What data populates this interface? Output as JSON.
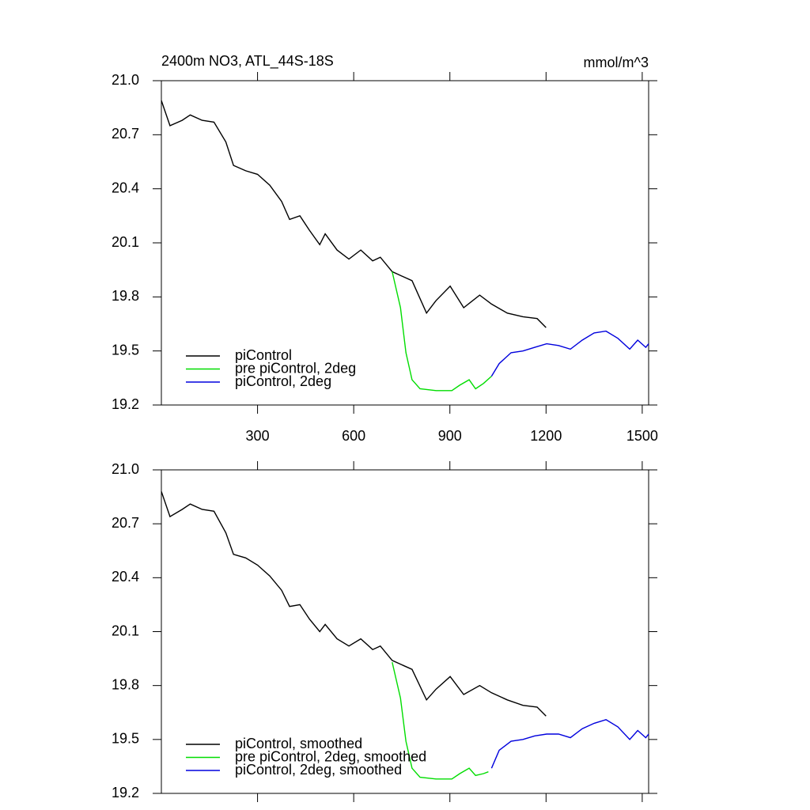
{
  "chart_data": [
    {
      "type": "line",
      "title": "2400m NO3, ATL_44S-18S",
      "units": "mmol/m^3",
      "xlim": [
        0,
        1520
      ],
      "xticks": [
        300,
        600,
        900,
        1200,
        1500
      ],
      "ylim": [
        19.2,
        21.0
      ],
      "yticks": [
        {
          "value": 19.2,
          "label": "19.2"
        },
        19.5,
        19.8,
        20.1,
        20.4,
        20.7,
        {
          "value": 21.0,
          "label": "21.0"
        }
      ],
      "series": [
        {
          "name": "piControl",
          "color": "#000000",
          "x": [
            0,
            27,
            65,
            90,
            127,
            164,
            201,
            225,
            263,
            300,
            338,
            375,
            400,
            432,
            462,
            494,
            511,
            548,
            585,
            622,
            659,
            683,
            720,
            757,
            782,
            827,
            857,
            901,
            943,
            993,
            1030,
            1079,
            1128,
            1172,
            1200
          ],
          "values": [
            20.89,
            20.75,
            20.78,
            20.81,
            20.78,
            20.77,
            20.66,
            20.53,
            20.5,
            20.48,
            20.42,
            20.33,
            20.23,
            20.25,
            20.17,
            20.09,
            20.15,
            20.06,
            20.01,
            20.06,
            20.0,
            20.02,
            19.94,
            19.91,
            19.89,
            19.71,
            19.78,
            19.86,
            19.74,
            19.81,
            19.76,
            19.71,
            19.69,
            19.68,
            19.63
          ]
        },
        {
          "name": "pre piControl, 2deg",
          "color": "#00dd00",
          "x": [
            720,
            746,
            763,
            782,
            807,
            857,
            906,
            931,
            960,
            980,
            1005,
            1030
          ],
          "values": [
            19.94,
            19.74,
            19.49,
            19.34,
            19.29,
            19.28,
            19.28,
            19.31,
            19.34,
            19.29,
            19.32,
            19.36
          ]
        },
        {
          "name": "piControl, 2deg",
          "color": "#0000dd",
          "x": [
            1030,
            1054,
            1091,
            1128,
            1165,
            1202,
            1239,
            1276,
            1313,
            1350,
            1387,
            1424,
            1461,
            1486,
            1511,
            1520
          ],
          "values": [
            19.36,
            19.43,
            19.49,
            19.5,
            19.52,
            19.54,
            19.53,
            19.51,
            19.56,
            19.6,
            19.61,
            19.57,
            19.51,
            19.56,
            19.52,
            19.54
          ]
        }
      ]
    },
    {
      "type": "line",
      "xlim": [
        0,
        1520
      ],
      "xticks": [
        300,
        600,
        900,
        1200,
        1500
      ],
      "ylim": [
        19.2,
        21.0
      ],
      "yticks": [
        {
          "value": 19.2,
          "label": "19.2"
        },
        19.5,
        19.8,
        20.1,
        20.4,
        20.7,
        {
          "value": 21.0,
          "label": "21.0"
        }
      ],
      "series": [
        {
          "name": "piControl, smoothed",
          "color": "#000000",
          "x": [
            0,
            27,
            65,
            90,
            127,
            164,
            201,
            225,
            263,
            300,
            338,
            375,
            400,
            432,
            462,
            494,
            511,
            548,
            585,
            622,
            659,
            683,
            720,
            757,
            782,
            827,
            857,
            901,
            943,
            993,
            1030,
            1079,
            1128,
            1172,
            1200
          ],
          "values": [
            20.88,
            20.74,
            20.78,
            20.81,
            20.78,
            20.77,
            20.65,
            20.53,
            20.51,
            20.47,
            20.41,
            20.33,
            20.24,
            20.25,
            20.17,
            20.1,
            20.14,
            20.06,
            20.02,
            20.06,
            20.0,
            20.02,
            19.94,
            19.91,
            19.89,
            19.72,
            19.78,
            19.85,
            19.75,
            19.8,
            19.76,
            19.72,
            19.69,
            19.68,
            19.63
          ]
        },
        {
          "name": "pre piControl, 2deg, smoothed",
          "color": "#00dd00",
          "x": [
            720,
            746,
            763,
            782,
            807,
            857,
            906,
            931,
            960,
            980,
            1005,
            1020
          ],
          "values": [
            19.93,
            19.73,
            19.49,
            19.34,
            19.29,
            19.28,
            19.28,
            19.31,
            19.34,
            19.3,
            19.31,
            19.32
          ]
        },
        {
          "name": "piControl, 2deg, smoothed",
          "color": "#0000dd",
          "x": [
            1030,
            1054,
            1091,
            1128,
            1165,
            1202,
            1239,
            1276,
            1313,
            1350,
            1387,
            1424,
            1461,
            1486,
            1511,
            1520
          ],
          "values": [
            19.34,
            19.44,
            19.49,
            19.5,
            19.52,
            19.53,
            19.53,
            19.51,
            19.56,
            19.59,
            19.61,
            19.57,
            19.5,
            19.55,
            19.51,
            19.53
          ]
        }
      ]
    }
  ]
}
